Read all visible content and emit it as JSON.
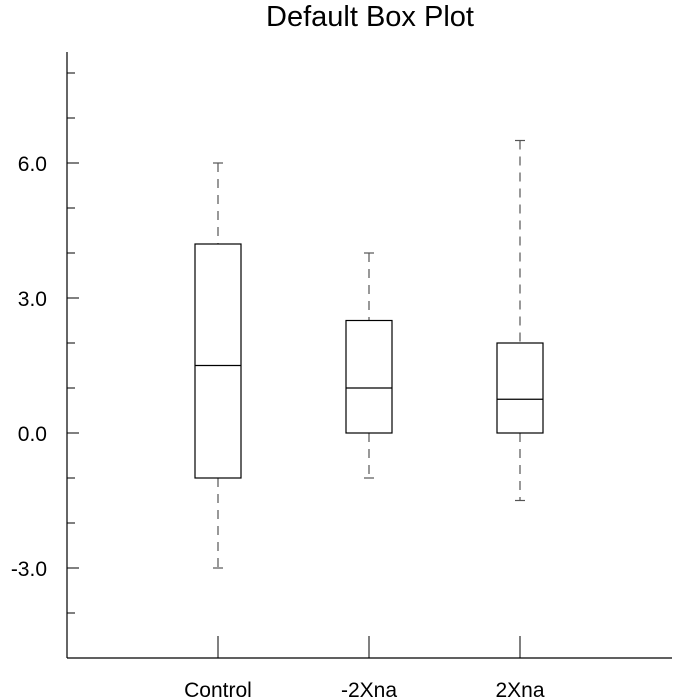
{
  "chart_data": {
    "type": "boxplot",
    "title": "Default Box Plot",
    "xlabel": "",
    "ylabel": "",
    "categories": [
      "Control",
      "-2Xna",
      "2Xna"
    ],
    "boxes": [
      {
        "category": "Control",
        "min": -3.0,
        "q1": -1.0,
        "median": 1.5,
        "q3": 4.2,
        "max": 6.0
      },
      {
        "category": "-2Xna",
        "min": -1.0,
        "q1": 0.0,
        "median": 1.0,
        "q3": 2.5,
        "max": 4.0
      },
      {
        "category": "2Xna",
        "min": -1.5,
        "q1": 0.0,
        "median": 0.75,
        "q3": 2.0,
        "max": 6.5
      }
    ],
    "ylim": [
      -5.0,
      8.5
    ],
    "yticks": [
      -3.0,
      0.0,
      3.0,
      6.0
    ],
    "ytick_labels": [
      "-3.0",
      "0.0",
      "3.0",
      "6.0"
    ],
    "ytick_minor_step": 1.0,
    "xlim": [
      -0.5,
      3.5
    ],
    "grid": false,
    "legend": "none",
    "colors": {
      "axis": "#000000",
      "box": "#000000",
      "whisker": "#555555"
    }
  }
}
